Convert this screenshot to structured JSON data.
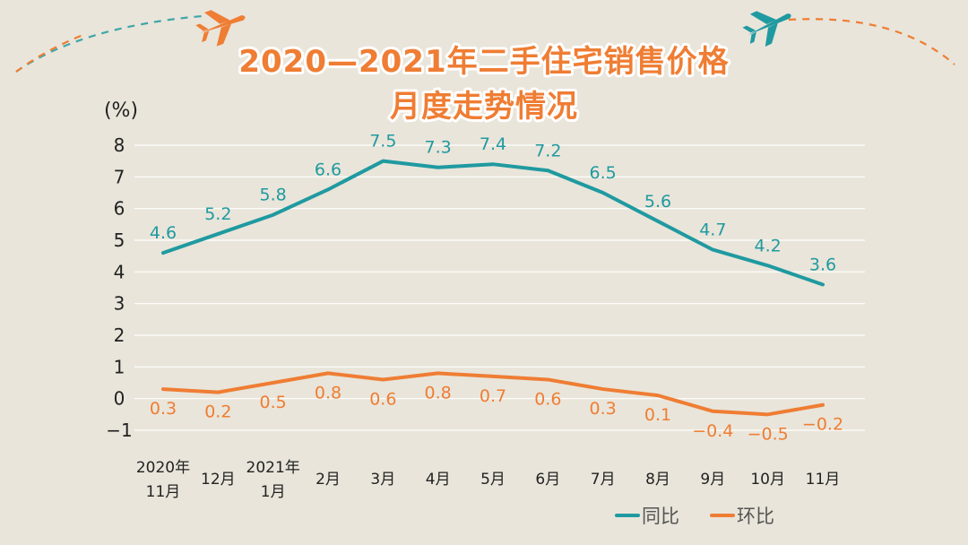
{
  "title_line1": "2020—2021年二手住宅销售价格",
  "title_line2": "月度走势情况",
  "chart_data": {
    "type": "line",
    "title": "2020—2021年二手住宅销售价格月度走势情况",
    "ylabel": "(%)",
    "xlabel": "",
    "ylim": [
      -1,
      8
    ],
    "yticks": [
      "8",
      "7",
      "6",
      "5",
      "4",
      "3",
      "2",
      "1",
      "0",
      "−1"
    ],
    "grid": true,
    "legend_position": "bottom-right",
    "categories": [
      [
        "2020年",
        "11月"
      ],
      [
        "12月"
      ],
      [
        "2021年",
        "1月"
      ],
      [
        "2月"
      ],
      [
        "3月"
      ],
      [
        "4月"
      ],
      [
        "5月"
      ],
      [
        "6月"
      ],
      [
        "7月"
      ],
      [
        "8月"
      ],
      [
        "9月"
      ],
      [
        "10月"
      ],
      [
        "11月"
      ]
    ],
    "series": [
      {
        "name": "同比",
        "color": "#1f9aa0",
        "values": [
          4.6,
          5.2,
          5.8,
          6.6,
          7.5,
          7.3,
          7.4,
          7.2,
          6.5,
          5.6,
          4.7,
          4.2,
          3.6
        ],
        "labels": [
          "4.6",
          "5.2",
          "5.8",
          "6.6",
          "7.5",
          "7.3",
          "7.4",
          "7.2",
          "6.5",
          "5.6",
          "4.7",
          "4.2",
          "3.6"
        ]
      },
      {
        "name": "环比",
        "color": "#ef7d33",
        "values": [
          0.3,
          0.2,
          0.5,
          0.8,
          0.6,
          0.8,
          0.7,
          0.6,
          0.3,
          0.1,
          -0.4,
          -0.5,
          -0.2
        ],
        "labels": [
          "0.3",
          "0.2",
          "0.5",
          "0.8",
          "0.6",
          "0.8",
          "0.7",
          "0.6",
          "0.3",
          "0.1",
          "−0.4",
          "−0.5",
          "−0.2"
        ]
      }
    ]
  }
}
